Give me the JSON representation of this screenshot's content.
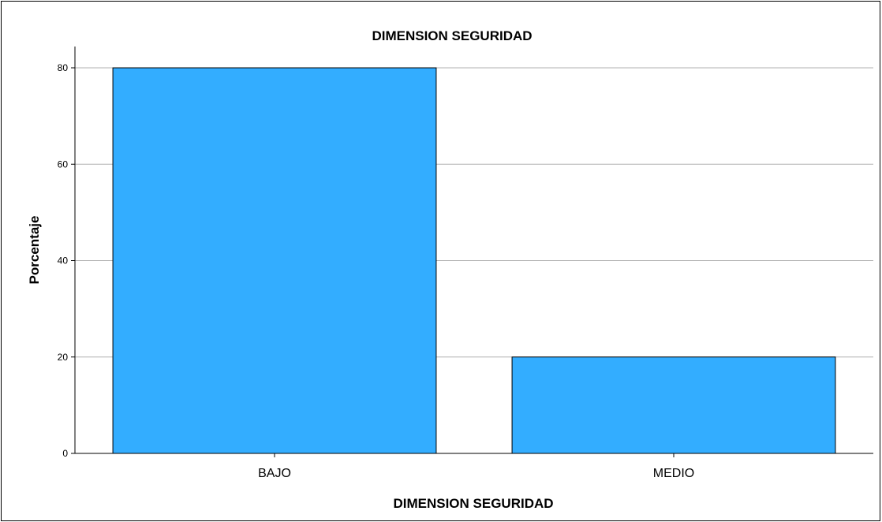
{
  "chart_data": {
    "type": "bar",
    "title": "DIMENSION SEGURIDAD",
    "xlabel": "DIMENSION SEGURIDAD",
    "ylabel": "Porcentaje",
    "categories": [
      "BAJO",
      "MEDIO"
    ],
    "values": [
      80,
      20
    ],
    "ylim": [
      0,
      80
    ],
    "yticks": [
      0,
      20,
      40,
      60,
      80
    ],
    "grid": true,
    "bar_color": "#33adff"
  }
}
